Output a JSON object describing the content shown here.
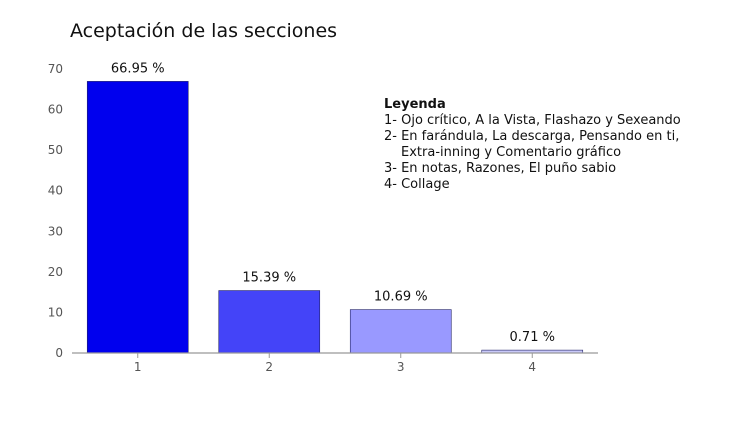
{
  "chart_data": {
    "type": "bar",
    "title": "Aceptación de las secciones",
    "xlabel": "",
    "ylabel": "",
    "categories": [
      "1",
      "2",
      "3",
      "4"
    ],
    "values": [
      66.95,
      15.39,
      10.69,
      0.71
    ],
    "data_labels": [
      "66.95 %",
      "15.39 %",
      "10.69 %",
      "0.71 %"
    ],
    "ylim": [
      0,
      70
    ],
    "yticks": [
      "0",
      "10",
      "20",
      "30",
      "40",
      "50",
      "60",
      "70"
    ],
    "bar_colors": [
      "#0000ee",
      "#4444f8",
      "#9999ff",
      "#c8c8f8"
    ],
    "grid": false,
    "legend": {
      "placement": "top-right",
      "title": "Leyenda",
      "items": [
        "1- Ojo crítico, A la Vista, Flashazo y Sexeando",
        "2- En farándula, La descarga, Pensando en ti,",
        "Extra-inning y Comentario gráfico",
        "3- En notas, Razones, El puño sabio",
        "4- Collage"
      ]
    }
  }
}
